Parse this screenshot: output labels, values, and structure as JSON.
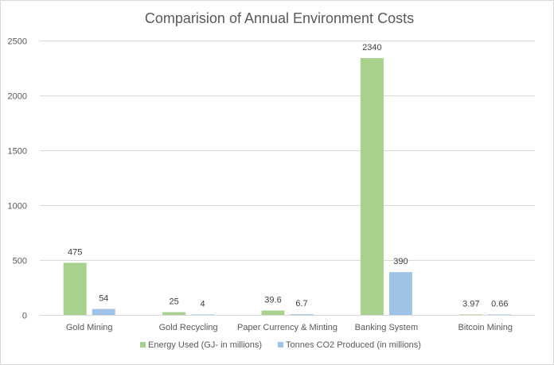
{
  "chart_data": {
    "type": "bar",
    "title": "Comparision of Annual Environment Costs",
    "categories": [
      "Gold Mining",
      "Gold Recycling",
      "Paper Currency & Minting",
      "Banking System",
      "Bitcoin Mining"
    ],
    "series": [
      {
        "name": "Energy Used (GJ- in millions)",
        "values": [
          475,
          25,
          39.6,
          2340,
          3.97
        ],
        "labels": [
          "475",
          "25",
          "39.6",
          "2340",
          "3.97"
        ],
        "color": "#a9d18e"
      },
      {
        "name": "Tonnes CO2 Produced (in millions)",
        "values": [
          54,
          4,
          6.7,
          390,
          0.66
        ],
        "labels": [
          "54",
          "4",
          "6.7",
          "390",
          "0.66"
        ],
        "color": "#9dc3e6"
      }
    ],
    "ylim": [
      0,
      2500
    ],
    "yticks": [
      0,
      500,
      1000,
      1500,
      2000,
      2500
    ],
    "ytick_labels": [
      "0",
      "500",
      "1000",
      "1500",
      "2000",
      "2500"
    ],
    "grid": true,
    "legend_position": "bottom",
    "gridline_color": "#d9d9d9"
  }
}
